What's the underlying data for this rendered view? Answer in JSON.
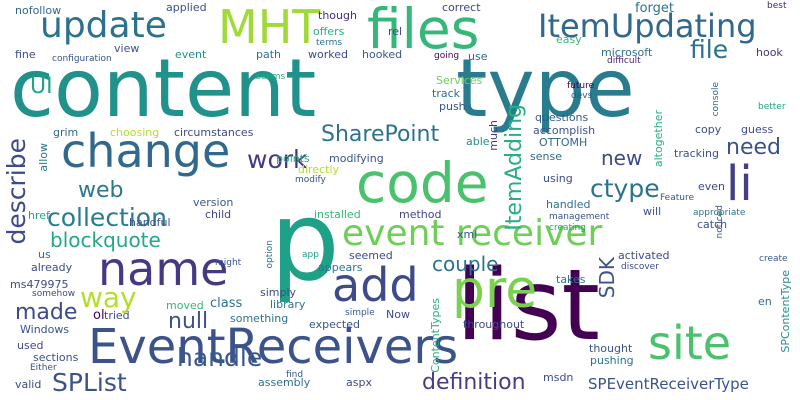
{
  "word_cloud": {
    "words": [
      {
        "text": "content",
        "color": "#21918c"
      },
      {
        "text": "type",
        "color": "#287c8e"
      },
      {
        "text": "list",
        "color": "#440154"
      },
      {
        "text": "p",
        "color": "#1fa187"
      },
      {
        "text": "EventReceivers",
        "color": "#3b528b"
      },
      {
        "text": "files",
        "color": "#35b779"
      },
      {
        "text": "MHT",
        "color": "#a0da39"
      },
      {
        "text": "code",
        "color": "#4ac16d"
      },
      {
        "text": "change",
        "color": "#31688e"
      },
      {
        "text": "update",
        "color": "#2c728e"
      },
      {
        "text": "name",
        "color": "#443983"
      },
      {
        "text": "event receiver",
        "color": "#6ece58"
      },
      {
        "text": "add",
        "color": "#3e4a89"
      },
      {
        "text": "pre",
        "color": "#7ad151"
      },
      {
        "text": "site",
        "color": "#4ac16d"
      },
      {
        "text": "ItemUpdating",
        "color": "#31688e"
      },
      {
        "text": "li",
        "color": "#433e85"
      },
      {
        "text": "work",
        "color": "#443a83"
      },
      {
        "text": "file",
        "color": "#2c728e"
      },
      {
        "text": "definition",
        "color": "#433e85"
      },
      {
        "text": "SharePoint",
        "color": "#2c728e"
      },
      {
        "text": "collection",
        "color": "#287c8e"
      },
      {
        "text": "way",
        "color": "#b5de2b"
      },
      {
        "text": "handle",
        "color": "#38598c"
      },
      {
        "text": "SPList",
        "color": "#3b528b"
      },
      {
        "text": "ItemAdding",
        "color": "#29af7f"
      },
      {
        "text": "describe",
        "color": "#3e4a89"
      },
      {
        "text": "ctype",
        "color": "#2c728e"
      },
      {
        "text": "need",
        "color": "#3b528b"
      },
      {
        "text": "new",
        "color": "#3e4a89"
      },
      {
        "text": "web",
        "color": "#2a788e"
      },
      {
        "text": "blockquote",
        "color": "#22a884"
      },
      {
        "text": "couple",
        "color": "#2c728e"
      },
      {
        "text": "made",
        "color": "#3e4a89"
      },
      {
        "text": "null",
        "color": "#3b528b"
      },
      {
        "text": "SDK",
        "color": "#3b528b"
      },
      {
        "text": "SPEventReceiverType",
        "color": "#3b528b"
      },
      {
        "text": "UI",
        "color": "#20a486"
      },
      {
        "text": "nofollow",
        "color": "#31688e"
      },
      {
        "text": "applied",
        "color": "#3b528b"
      },
      {
        "text": "though",
        "color": "#472d7b"
      },
      {
        "text": "correct",
        "color": "#414487"
      },
      {
        "text": "forget",
        "color": "#2c728e"
      },
      {
        "text": "best",
        "color": "#481f71"
      },
      {
        "text": "offers",
        "color": "#29af7f"
      },
      {
        "text": "terms",
        "color": "#2c728e"
      },
      {
        "text": "rel",
        "color": "#414487"
      },
      {
        "text": "easy",
        "color": "#35b779"
      },
      {
        "text": "microsoft",
        "color": "#2c728e"
      },
      {
        "text": "hook",
        "color": "#443983"
      },
      {
        "text": "fine",
        "color": "#3e4a89"
      },
      {
        "text": "view",
        "color": "#3b528b"
      },
      {
        "text": "event",
        "color": "#21918c"
      },
      {
        "text": "path",
        "color": "#2c728e"
      },
      {
        "text": "worked",
        "color": "#3e4a89"
      },
      {
        "text": "hooked",
        "color": "#38598c"
      },
      {
        "text": "use",
        "color": "#31688e"
      },
      {
        "text": "configuration",
        "color": "#3b528b"
      },
      {
        "text": "going",
        "color": "#440154"
      },
      {
        "text": "difficult",
        "color": "#482475"
      },
      {
        "text": "seems",
        "color": "#26ad81"
      },
      {
        "text": "Services",
        "color": "#6ece58"
      },
      {
        "text": "track",
        "color": "#2c728e"
      },
      {
        "text": "push",
        "color": "#3b528b"
      },
      {
        "text": "questions",
        "color": "#38598c"
      },
      {
        "text": "future",
        "color": "#440154"
      },
      {
        "text": "devs",
        "color": "#38598c"
      },
      {
        "text": "console",
        "color": "#31688e"
      },
      {
        "text": "better",
        "color": "#20a486"
      },
      {
        "text": "grim",
        "color": "#31688e"
      },
      {
        "text": "choosing",
        "color": "#b5de2b"
      },
      {
        "text": "circumstances",
        "color": "#3e4a89"
      },
      {
        "text": "much",
        "color": "#443983"
      },
      {
        "text": "accomplish",
        "color": "#3b528b"
      },
      {
        "text": "copy",
        "color": "#3e4a89"
      },
      {
        "text": "guess",
        "color": "#3e4a89"
      },
      {
        "text": "allow",
        "color": "#2c728e"
      },
      {
        "text": "able",
        "color": "#21918c"
      },
      {
        "text": "OTTOMH",
        "color": "#31688e"
      },
      {
        "text": "altogether",
        "color": "#29af7f"
      },
      {
        "text": "tracking",
        "color": "#3b528b"
      },
      {
        "text": "points",
        "color": "#29af7f"
      },
      {
        "text": "modifying",
        "color": "#3b528b"
      },
      {
        "text": "directly",
        "color": "#b5de2b"
      },
      {
        "text": "sense",
        "color": "#31688e"
      },
      {
        "text": "using",
        "color": "#3e4a89"
      },
      {
        "text": "modify",
        "color": "#3b528b"
      },
      {
        "text": "handled",
        "color": "#2c728e"
      },
      {
        "text": "Feature",
        "color": "#3b528b"
      },
      {
        "text": "even",
        "color": "#3e4a89"
      },
      {
        "text": "noticed",
        "color": "#3b528b"
      },
      {
        "text": "href",
        "color": "#20a486"
      },
      {
        "text": "handful",
        "color": "#3b528b"
      },
      {
        "text": "version",
        "color": "#38598c"
      },
      {
        "text": "child",
        "color": "#3e4a89"
      },
      {
        "text": "installed",
        "color": "#35b779"
      },
      {
        "text": "method",
        "color": "#414487"
      },
      {
        "text": "management",
        "color": "#3b528b"
      },
      {
        "text": "creating",
        "color": "#20a486"
      },
      {
        "text": "will",
        "color": "#3b528b"
      },
      {
        "text": "appropriate",
        "color": "#2c728e"
      },
      {
        "text": "catch",
        "color": "#3b528b"
      },
      {
        "text": "create",
        "color": "#38598c"
      },
      {
        "text": "us",
        "color": "#31688e"
      },
      {
        "text": "xml",
        "color": "#3b528b"
      },
      {
        "text": "seemed",
        "color": "#3e4a89"
      },
      {
        "text": "activated",
        "color": "#3e4a89"
      },
      {
        "text": "discover",
        "color": "#3e4a89"
      },
      {
        "text": "already",
        "color": "#3e4a89"
      },
      {
        "text": "app",
        "color": "#20a486"
      },
      {
        "text": "option",
        "color": "#2c728e"
      },
      {
        "text": "might",
        "color": "#3b528b"
      },
      {
        "text": "appears",
        "color": "#2c728e"
      },
      {
        "text": "takes",
        "color": "#2c728e"
      },
      {
        "text": "ms479975",
        "color": "#3e4a89"
      },
      {
        "text": "somehow",
        "color": "#3e4a89"
      },
      {
        "text": "simply",
        "color": "#3e4a89"
      },
      {
        "text": "library",
        "color": "#2c728e"
      },
      {
        "text": "moved",
        "color": "#35b779"
      },
      {
        "text": "class",
        "color": "#2c728e"
      },
      {
        "text": "Windows",
        "color": "#3b528b"
      },
      {
        "text": "ol",
        "color": "#440154"
      },
      {
        "text": "tried",
        "color": "#3e4a89"
      },
      {
        "text": "something",
        "color": "#2c728e"
      },
      {
        "text": "simple",
        "color": "#38598c"
      },
      {
        "text": "Now",
        "color": "#3e4a89"
      },
      {
        "text": "ContentTypes",
        "color": "#29af7f"
      },
      {
        "text": "en",
        "color": "#2c728e"
      },
      {
        "text": "SPContentType",
        "color": "#21918c"
      },
      {
        "text": "used",
        "color": "#3e4a89"
      },
      {
        "text": "expected",
        "color": "#3b528b"
      },
      {
        "text": "throughout",
        "color": "#3e4a89"
      },
      {
        "text": "sections",
        "color": "#3b528b"
      },
      {
        "text": "Either",
        "color": "#3b528b"
      },
      {
        "text": "thought",
        "color": "#3b528b"
      },
      {
        "text": "pushing",
        "color": "#2c728e"
      },
      {
        "text": "valid",
        "color": "#3e4a89"
      },
      {
        "text": "assembly",
        "color": "#2c728e"
      },
      {
        "text": "aspx",
        "color": "#3e4a89"
      },
      {
        "text": "msdn",
        "color": "#3e4a89"
      },
      {
        "text": "find",
        "color": "#38598c"
      }
    ]
  }
}
